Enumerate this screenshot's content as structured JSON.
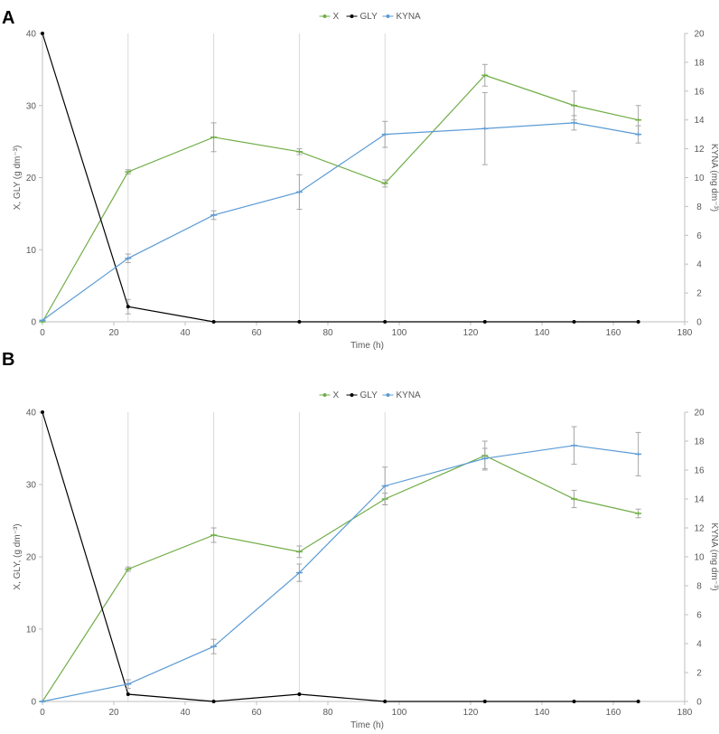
{
  "colors": {
    "X": "#70AD47",
    "GLY": "#000000",
    "KYNA": "#5B9BD5",
    "axis": "#BFBFBF",
    "text": "#595959",
    "errorbar": "#A6A6A6",
    "vgrid": "#D9D9D9"
  },
  "chart_data": [
    {
      "type": "line",
      "panel_label": "A",
      "legend": [
        "X",
        "GLY",
        "KYNA"
      ],
      "xlabel": "Time (h)",
      "ylabel_left": "X, GLY (g dm⁻³)",
      "ylabel_right": "KYNA (mg dm⁻³)",
      "xlim": [
        0,
        180
      ],
      "ylim_left": [
        0,
        40
      ],
      "ylim_right": [
        0,
        20
      ],
      "x_ticks": [
        0,
        20,
        40,
        60,
        80,
        100,
        120,
        140,
        160,
        180
      ],
      "y_left_ticks": [
        0,
        10,
        20,
        30,
        40
      ],
      "y_right_ticks": [
        0,
        2,
        4,
        6,
        8,
        10,
        12,
        14,
        16,
        18,
        20
      ],
      "vertical_lines": [
        24,
        48,
        72,
        96
      ],
      "series": [
        {
          "name": "X",
          "axis": "left",
          "x": [
            0,
            24,
            48,
            72,
            96,
            124,
            149,
            167
          ],
          "values": [
            0,
            20.8,
            25.6,
            23.6,
            19.2,
            34.2,
            30.0,
            28.0
          ],
          "errors": [
            0,
            0.3,
            2.0,
            0.4,
            0.5,
            1.5,
            2.0,
            2.0
          ]
        },
        {
          "name": "GLY",
          "axis": "left",
          "x": [
            0,
            24,
            48,
            72,
            96,
            124,
            149,
            167
          ],
          "values": [
            40,
            2.1,
            0,
            0,
            0,
            0,
            0,
            0
          ],
          "errors": [
            0,
            1.0,
            0,
            0,
            0,
            0,
            0,
            0
          ]
        },
        {
          "name": "KYNA",
          "axis": "right",
          "x": [
            0,
            24,
            48,
            72,
            96,
            124,
            149,
            167
          ],
          "values": [
            0.1,
            4.4,
            7.4,
            9.0,
            13.0,
            13.4,
            13.8,
            13.0
          ],
          "errors": [
            0,
            0.3,
            0.3,
            1.2,
            0.9,
            2.5,
            0.5,
            0.6
          ]
        }
      ]
    },
    {
      "type": "line",
      "panel_label": "B",
      "legend": [
        "X",
        "GLY",
        "KYNA"
      ],
      "xlabel": "Time (h)",
      "ylabel_left": "X, GLY, (g dm⁻³)",
      "ylabel_right": "KYNA (mg dm⁻³)",
      "xlim": [
        0,
        180
      ],
      "ylim_left": [
        0,
        40
      ],
      "ylim_right": [
        0,
        20
      ],
      "x_ticks": [
        0,
        20,
        40,
        60,
        80,
        100,
        120,
        140,
        160,
        180
      ],
      "y_left_ticks": [
        0,
        10,
        20,
        30,
        40
      ],
      "y_right_ticks": [
        0,
        2,
        4,
        6,
        8,
        10,
        12,
        14,
        16,
        18,
        20
      ],
      "vertical_lines": [
        24,
        48,
        72,
        96
      ],
      "series": [
        {
          "name": "X",
          "axis": "left",
          "x": [
            0,
            24,
            48,
            72,
            96,
            124,
            149,
            167
          ],
          "values": [
            0,
            18.3,
            23.0,
            20.7,
            28.0,
            34.0,
            28.0,
            26.0
          ],
          "errors": [
            0,
            0.3,
            1.0,
            0.8,
            0.8,
            2.0,
            1.2,
            0.6
          ]
        },
        {
          "name": "GLY",
          "axis": "left",
          "x": [
            0,
            24,
            48,
            72,
            96,
            124,
            149,
            167
          ],
          "values": [
            40,
            1.0,
            0,
            1.0,
            0,
            0,
            0,
            0
          ],
          "errors": [
            0,
            0,
            0,
            0,
            0,
            0,
            0,
            0
          ]
        },
        {
          "name": "KYNA",
          "axis": "right",
          "x": [
            0,
            24,
            48,
            72,
            96,
            124,
            149,
            167
          ],
          "values": [
            0,
            1.2,
            3.8,
            8.9,
            14.9,
            16.8,
            17.7,
            17.1
          ],
          "errors": [
            0,
            0.3,
            0.5,
            0.6,
            1.3,
            0.7,
            1.3,
            1.5
          ]
        }
      ]
    }
  ]
}
